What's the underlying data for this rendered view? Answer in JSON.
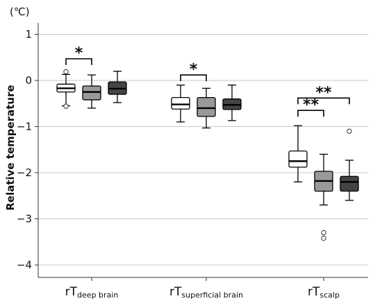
{
  "chart_data": {
    "type": "box",
    "unit_label": "(℃)",
    "ylabel": "Relative temperature",
    "ylim": [
      -4.5,
      1.3
    ],
    "yticks": [
      1,
      0,
      -1,
      -2,
      -3,
      -4
    ],
    "yticklabels": [
      "1",
      "0",
      "−1",
      "−2",
      "−3",
      "−4"
    ],
    "grid": true,
    "groups": [
      {
        "main": "rT",
        "sub": "deep brain"
      },
      {
        "main": "rT",
        "sub": "superficial brain"
      },
      {
        "main": "rT",
        "sub": "scalp"
      }
    ],
    "box_fill_colors": [
      "#ffffff",
      "#999999",
      "#444444"
    ],
    "boxes": [
      {
        "group": 0,
        "fill": 0,
        "whisker_low": -0.55,
        "q1": -0.25,
        "median": -0.17,
        "q3": -0.08,
        "whisker_high": 0.13,
        "outliers": [
          0.19,
          -0.56
        ]
      },
      {
        "group": 0,
        "fill": 1,
        "whisker_low": -0.6,
        "q1": -0.42,
        "median": -0.25,
        "q3": -0.12,
        "whisker_high": 0.12,
        "outliers": []
      },
      {
        "group": 0,
        "fill": 2,
        "whisker_low": -0.48,
        "q1": -0.3,
        "median": -0.18,
        "q3": -0.03,
        "whisker_high": 0.2,
        "outliers": []
      },
      {
        "group": 1,
        "fill": 0,
        "whisker_low": -0.9,
        "q1": -0.62,
        "median": -0.52,
        "q3": -0.37,
        "whisker_high": -0.1,
        "outliers": []
      },
      {
        "group": 1,
        "fill": 1,
        "whisker_low": -1.03,
        "q1": -0.78,
        "median": -0.6,
        "q3": -0.37,
        "whisker_high": -0.17,
        "outliers": []
      },
      {
        "group": 1,
        "fill": 2,
        "whisker_low": -0.87,
        "q1": -0.63,
        "median": -0.53,
        "q3": -0.4,
        "whisker_high": -0.1,
        "outliers": []
      },
      {
        "group": 2,
        "fill": 0,
        "whisker_low": -2.2,
        "q1": -1.88,
        "median": -1.75,
        "q3": -1.53,
        "whisker_high": -0.98,
        "outliers": []
      },
      {
        "group": 2,
        "fill": 1,
        "whisker_low": -2.7,
        "q1": -2.4,
        "median": -2.18,
        "q3": -1.97,
        "whisker_high": -1.6,
        "outliers": [
          -3.3,
          -3.42
        ]
      },
      {
        "group": 2,
        "fill": 2,
        "whisker_low": -2.6,
        "q1": -2.4,
        "median": -2.2,
        "q3": -2.08,
        "whisker_high": -1.73,
        "outliers": [
          -1.1
        ]
      }
    ],
    "significance": [
      {
        "from_box": 0,
        "to_box": 1,
        "y": 0.47,
        "label": "*"
      },
      {
        "from_box": 3,
        "to_box": 4,
        "y": 0.12,
        "label": "*"
      },
      {
        "from_box": 6,
        "to_box": 7,
        "y": -0.65,
        "label": "**"
      },
      {
        "from_box": 6,
        "to_box": 8,
        "y": -0.38,
        "label": "**"
      }
    ]
  }
}
